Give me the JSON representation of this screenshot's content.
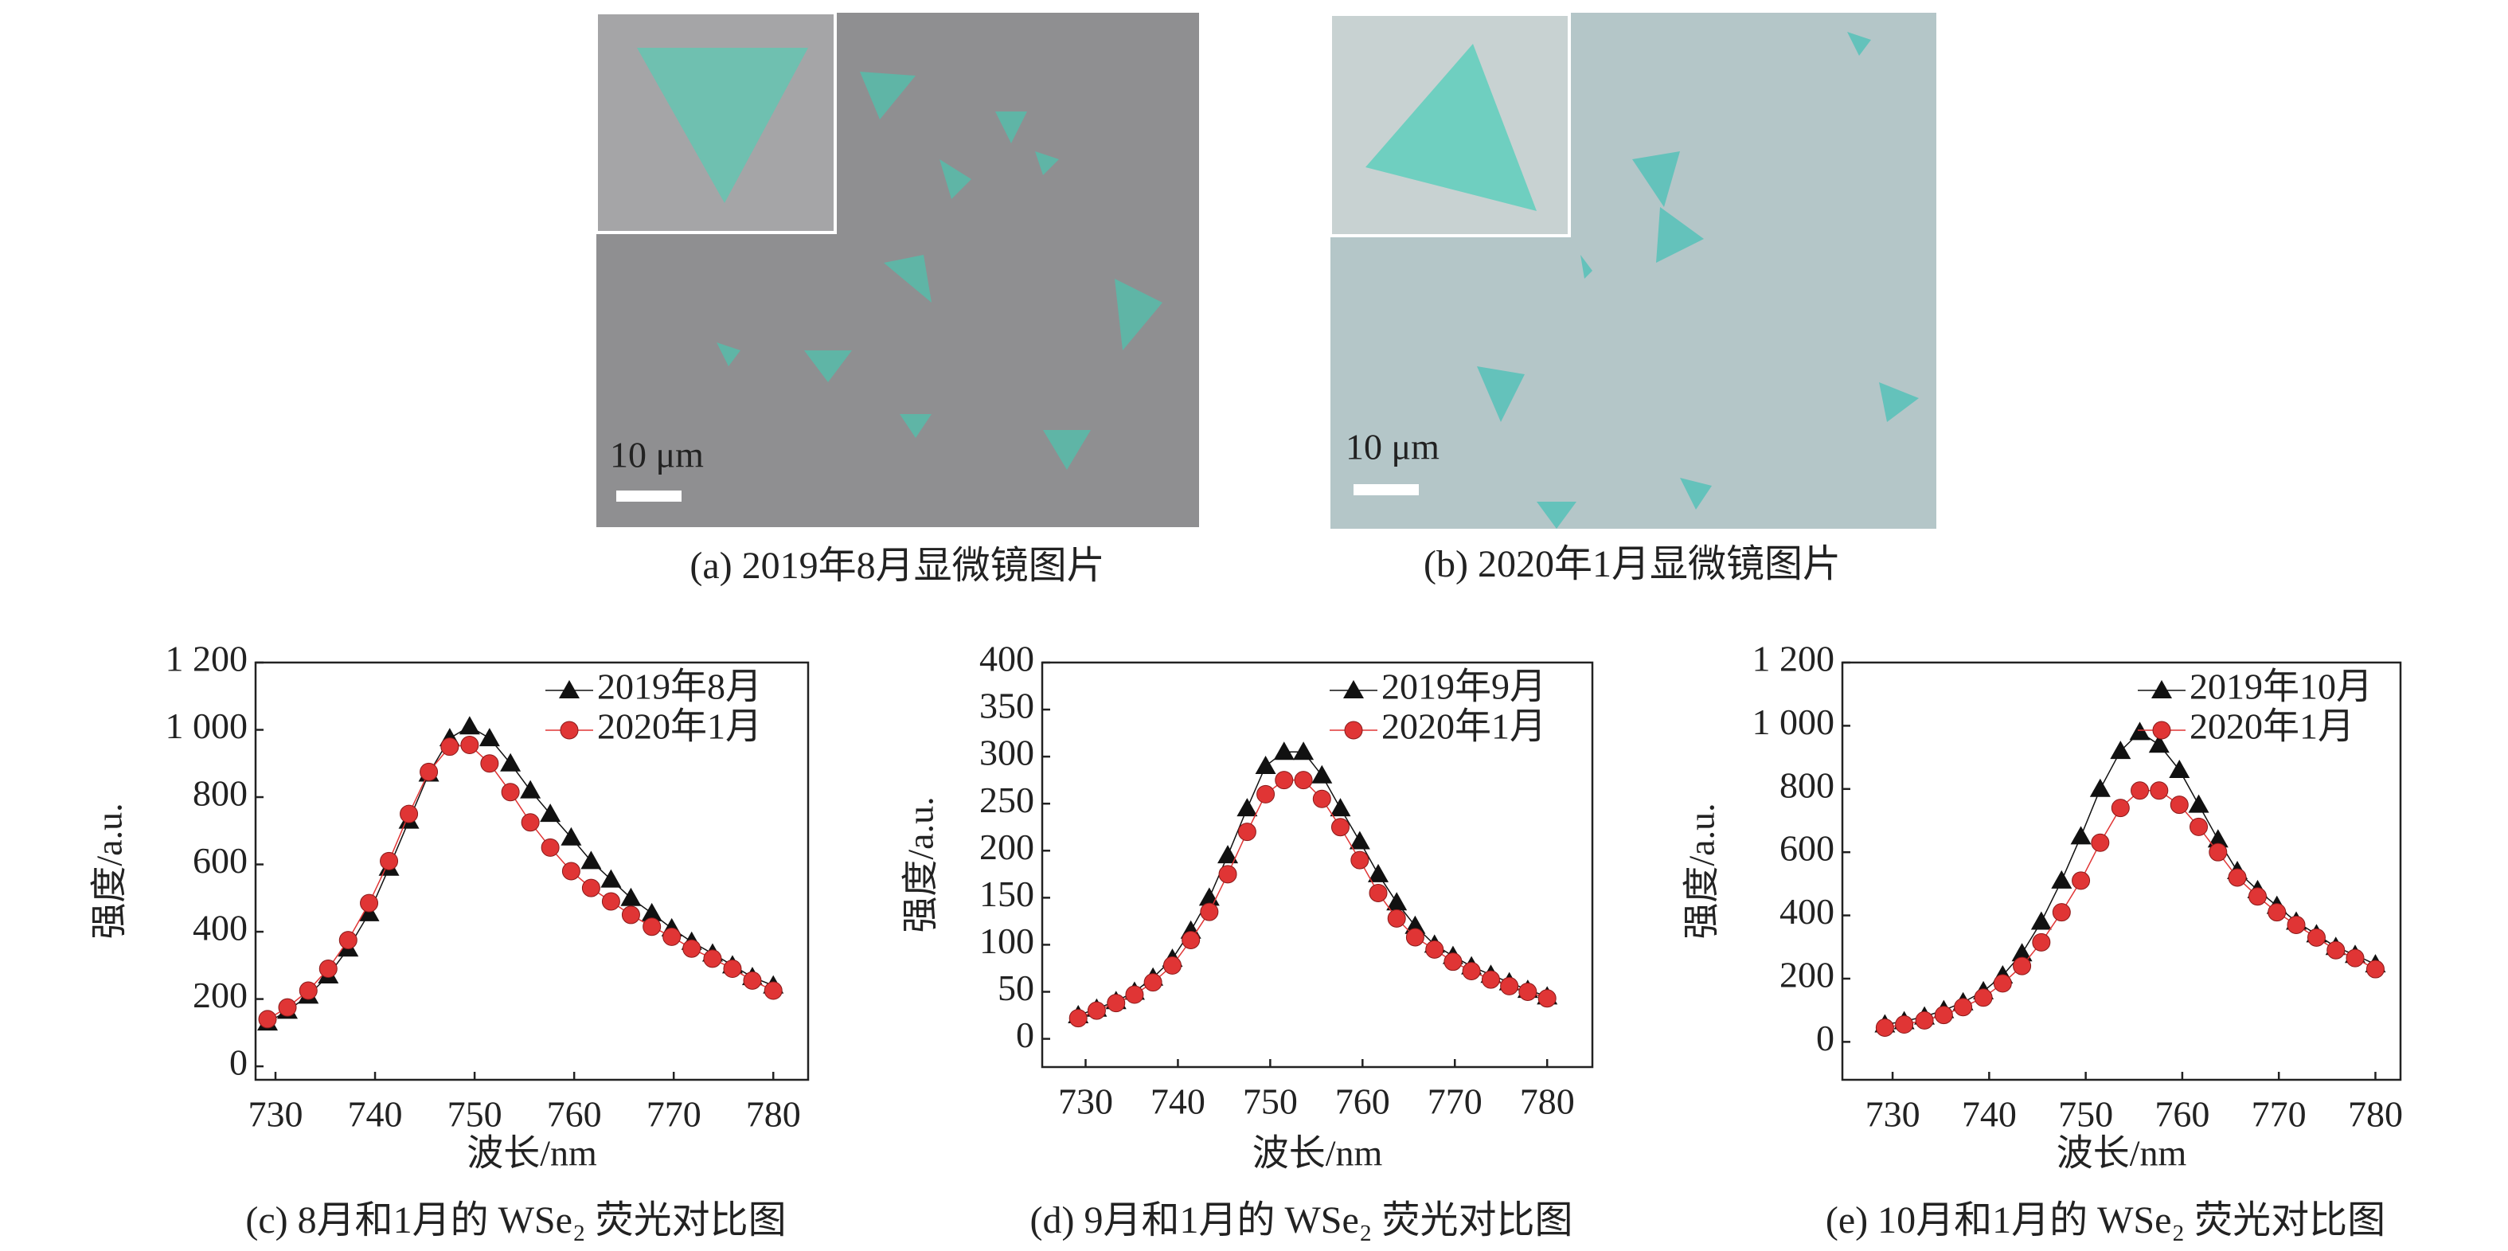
{
  "figures": [
    {
      "caption": "(a) 2019年8月显微镜图片",
      "scale_label": "10 μm"
    },
    {
      "caption": "(b) 2020年1月显微镜图片",
      "scale_label": "10 μm"
    }
  ],
  "chart_data": [
    {
      "type": "line",
      "caption": "(c) 8月和1月的 WSe₂ 荧光对比图",
      "x_label": "波长/nm",
      "y_label": "强度/a.u.",
      "xlim": [
        728,
        783.5
      ],
      "xticks": [
        730,
        740,
        750,
        760,
        770,
        780
      ],
      "ylim": [
        -40,
        1200
      ],
      "yticks": [
        0,
        200,
        400,
        600,
        800,
        {
          "value": 1000,
          "label": "1 000"
        },
        {
          "value": 1200,
          "label": "1 200"
        }
      ],
      "x": [
        729.2,
        731.2,
        733.3,
        735.3,
        737.3,
        739.4,
        741.4,
        743.4,
        745.4,
        747.5,
        749.5,
        751.5,
        753.6,
        755.6,
        757.6,
        759.7,
        761.7,
        763.7,
        765.7,
        767.8,
        769.8,
        771.8,
        773.9,
        775.9,
        777.9,
        780.0
      ],
      "series": [
        {
          "name": "2019年8月",
          "color": "#111111",
          "marker": "triangle",
          "values": [
            130,
            165,
            210,
            270,
            350,
            455,
            590,
            730,
            870,
            975,
            1010,
            975,
            900,
            820,
            750,
            680,
            610,
            555,
            500,
            455,
            410,
            370,
            335,
            300,
            265,
            240
          ]
        },
        {
          "name": "2020年1月",
          "color": "#e03535",
          "marker": "circle",
          "values": [
            140,
            175,
            225,
            290,
            375,
            485,
            610,
            750,
            875,
            950,
            955,
            900,
            815,
            725,
            650,
            580,
            530,
            490,
            450,
            415,
            385,
            350,
            320,
            290,
            255,
            225
          ]
        }
      ]
    },
    {
      "type": "line",
      "caption": "(d) 9月和1月的 WSe₂ 荧光对比图",
      "x_label": "波长/nm",
      "y_label": "强度/a.u.",
      "xlim": [
        725.3,
        784.9
      ],
      "xticks": [
        730,
        740,
        750,
        760,
        770,
        780
      ],
      "ylim": [
        -30,
        400
      ],
      "yticks": [
        0,
        50,
        100,
        150,
        200,
        250,
        300,
        350,
        400
      ],
      "x": [
        729.2,
        731.2,
        733.3,
        735.3,
        737.3,
        739.4,
        741.4,
        743.4,
        745.4,
        747.5,
        749.5,
        751.5,
        753.6,
        755.6,
        757.6,
        759.7,
        761.7,
        763.7,
        765.7,
        767.8,
        769.8,
        771.8,
        773.9,
        775.9,
        777.9,
        780.0
      ],
      "series": [
        {
          "name": "2019年9月",
          "color": "#111111",
          "marker": "triangle",
          "values": [
            25,
            32,
            40,
            50,
            65,
            85,
            115,
            150,
            195,
            245,
            290,
            305,
            305,
            280,
            245,
            210,
            175,
            145,
            120,
            100,
            88,
            77,
            68,
            60,
            52,
            45
          ]
        },
        {
          "name": "2020年1月",
          "color": "#e03535",
          "marker": "circle",
          "values": [
            22,
            30,
            38,
            47,
            60,
            78,
            105,
            135,
            175,
            220,
            260,
            275,
            275,
            255,
            225,
            190,
            155,
            128,
            108,
            95,
            82,
            72,
            63,
            56,
            50,
            43
          ]
        }
      ]
    },
    {
      "type": "line",
      "caption": "(e) 10月和1月的 WSe₂ 荧光对比图",
      "x_label": "波长/nm",
      "y_label": "强度/a.u.",
      "xlim": [
        724.8,
        782.6
      ],
      "xticks": [
        730,
        740,
        750,
        760,
        770,
        780
      ],
      "ylim": [
        -120,
        1200
      ],
      "yticks": [
        0,
        200,
        400,
        600,
        800,
        {
          "value": 1000,
          "label": "1 000"
        },
        {
          "value": 1200,
          "label": "1 200"
        }
      ],
      "x": [
        729.2,
        731.2,
        733.3,
        735.3,
        737.3,
        739.4,
        741.4,
        743.4,
        745.4,
        747.5,
        749.5,
        751.5,
        753.6,
        755.6,
        757.6,
        759.7,
        761.7,
        763.7,
        765.7,
        767.8,
        769.8,
        771.8,
        773.9,
        775.9,
        777.9,
        780.0
      ],
      "series": [
        {
          "name": "2019年10月",
          "color": "#111111",
          "marker": "triangle",
          "values": [
            55,
            65,
            80,
            100,
            125,
            160,
            210,
            280,
            380,
            510,
            650,
            800,
            920,
            980,
            940,
            860,
            750,
            640,
            540,
            480,
            430,
            380,
            340,
            300,
            275,
            245
          ]
        },
        {
          "name": "2020年1月",
          "color": "#e03535",
          "marker": "circle",
          "values": [
            45,
            55,
            68,
            85,
            110,
            140,
            185,
            240,
            315,
            410,
            510,
            630,
            740,
            795,
            795,
            750,
            680,
            600,
            520,
            460,
            410,
            370,
            330,
            290,
            265,
            230
          ]
        }
      ]
    }
  ]
}
